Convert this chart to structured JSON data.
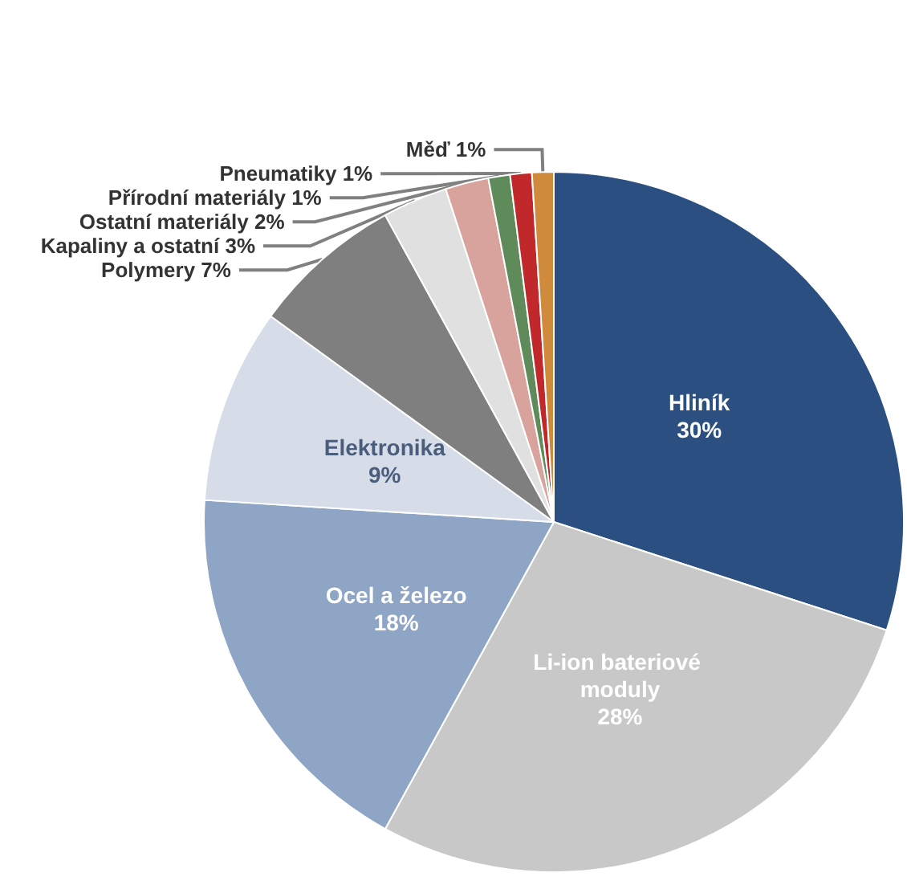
{
  "chart_data": {
    "type": "pie",
    "categories": [
      "Hliník",
      "Li-ion bateriové moduly",
      "Ocel a železo",
      "Elektronika",
      "Polymery",
      "Kapaliny a ostatní",
      "Ostatní materiály",
      "Přírodní materiály",
      "Pneumatiky",
      "Měď"
    ],
    "values": [
      30,
      28,
      18,
      9,
      7,
      3,
      2,
      1,
      1,
      1
    ],
    "value_labels": [
      "30%",
      "28%",
      "18%",
      "9%",
      "7%",
      "3%",
      "2%",
      "1%",
      "1%",
      "1%"
    ],
    "colors": [
      "#2a4f80",
      "#c8c8c8",
      "#8ea5c5",
      "#d6dde8",
      "#7f7f7f",
      "#e0e0e0",
      "#d8a39d",
      "#5f8a5a",
      "#c0282c",
      "#d08a3c"
    ],
    "legend": false
  }
}
